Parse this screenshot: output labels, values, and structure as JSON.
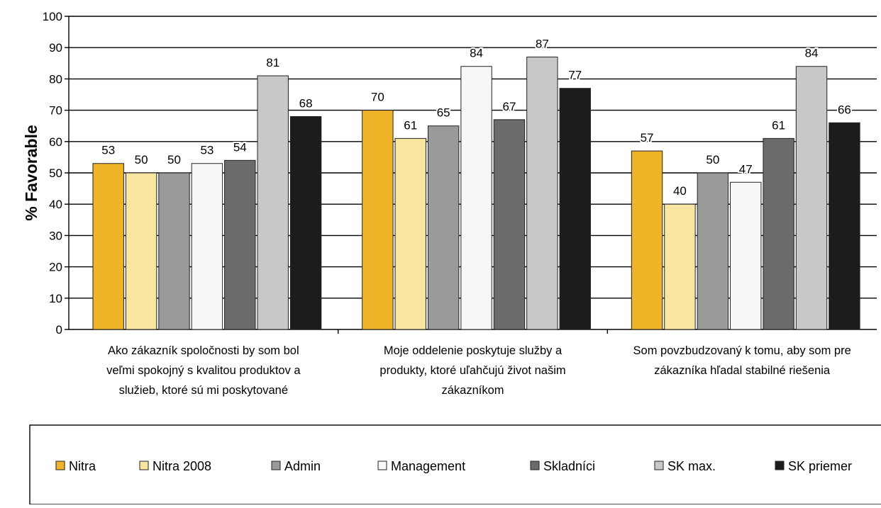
{
  "chart_data": {
    "type": "bar",
    "title": "",
    "xlabel": "",
    "ylabel": "% Favorable",
    "ylim": [
      0,
      100
    ],
    "yticks": [
      0,
      10,
      20,
      30,
      40,
      50,
      60,
      70,
      80,
      90,
      100
    ],
    "grid": true,
    "legend_position": "bottom",
    "categories": [
      [
        "Ako zákazník spoločnosti by som bol",
        "veľmi spokojný s kvalitou produktov a",
        "služieb, ktoré sú mi poskytované"
      ],
      [
        "Moje oddelenie poskytuje služby a",
        "produkty, ktoré uľahčujú život našim",
        "zákazníkom"
      ],
      [
        "Som povzbudzovaný k tomu, aby som pre",
        "zákazníka hľadal stabilné riešenia"
      ]
    ],
    "series": [
      {
        "name": "Nitra",
        "color": "#f0b429",
        "values": [
          53,
          70,
          57
        ]
      },
      {
        "name": "Nitra 2008",
        "color": "#f8e6a0",
        "values": [
          50,
          61,
          40
        ]
      },
      {
        "name": "Admin",
        "color": "#9a9a9a",
        "values": [
          50,
          65,
          50
        ]
      },
      {
        "name": "Management",
        "color": "#f7f7f7",
        "values": [
          53,
          84,
          47
        ]
      },
      {
        "name": "Skladníci",
        "color": "#6b6b6b",
        "values": [
          54,
          67,
          61
        ]
      },
      {
        "name": "SK max.",
        "color": "#c8c8c8",
        "values": [
          81,
          87,
          84
        ]
      },
      {
        "name": "SK priemer",
        "color": "#1c1c1c",
        "values": [
          68,
          77,
          66
        ]
      }
    ]
  }
}
